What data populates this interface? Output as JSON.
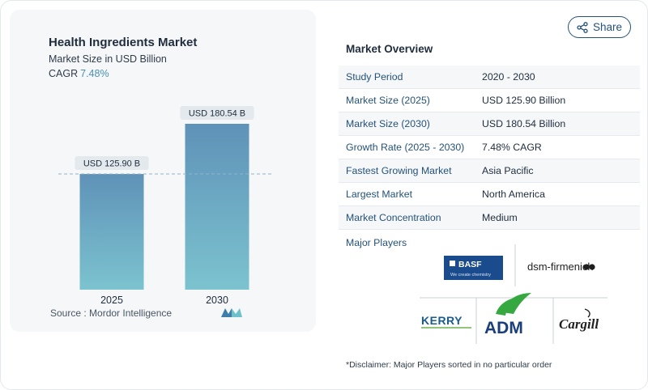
{
  "chart": {
    "title": "Health Ingredients Market",
    "subtitle": "Market Size in USD Billion",
    "cagr_label": "CAGR",
    "cagr_value": "7.48%",
    "source": "Source :  Mordor Intelligence"
  },
  "chart_data": {
    "type": "bar",
    "categories": [
      "2025",
      "2030"
    ],
    "values": [
      125.9,
      180.54
    ],
    "data_labels": [
      "USD 125.90 B",
      "USD 180.54 B"
    ],
    "title": "Health Ingredients Market",
    "ylabel": "Market Size in USD Billion",
    "xlabel": "",
    "ylim": [
      0,
      200
    ],
    "grid": false,
    "reference_line": "dashed line at 2025 value",
    "colors": {
      "bar_top": "#5f92b8",
      "bar_bottom": "#7cc3cf",
      "label_bg": "#e4e9ee"
    }
  },
  "share": {
    "label": "Share",
    "icon": "share-icon"
  },
  "overview": {
    "title": "Market Overview",
    "rows": [
      {
        "label": "Study Period",
        "value": "2020 - 2030"
      },
      {
        "label": "Market Size (2025)",
        "value": "USD 125.90 Billion"
      },
      {
        "label": "Market Size (2030)",
        "value": "USD 180.54 Billion"
      },
      {
        "label": "Growth Rate (2025 - 2030)",
        "value": "7.48% CAGR"
      },
      {
        "label": "Fastest Growing Market",
        "value": "Asia Pacific"
      },
      {
        "label": "Largest Market",
        "value": "North America"
      },
      {
        "label": "Market Concentration",
        "value": "Medium"
      }
    ]
  },
  "players": {
    "label": "Major Players",
    "logos": [
      {
        "name": "BASF",
        "tagline": "We create chemistry"
      },
      {
        "name": "dsm-firmenich"
      },
      {
        "name": "KERRY"
      },
      {
        "name": "ADM"
      },
      {
        "name": "Cargill"
      }
    ]
  },
  "disclaimer": "*Disclaimer: Major Players sorted in no particular order",
  "colors": {
    "accent": "#24527a",
    "muted_blue": "#4a8fb3",
    "card_bg": "#f5f7f9"
  }
}
